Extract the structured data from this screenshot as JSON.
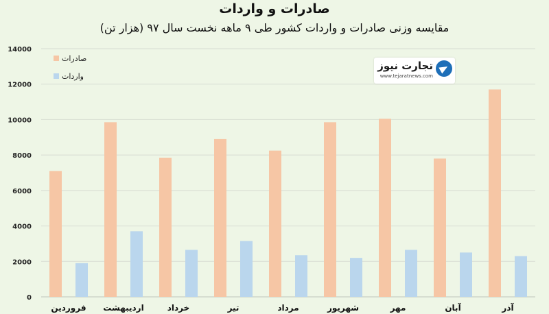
{
  "title": "صادرات و واردات",
  "subtitle": "مقایسه وزنی صادرات و واردات کشور طی ۹ ماهه نخست سال ۹۷ (هزار تن)",
  "logo": {
    "name": "تجارت نیوز",
    "site": "www.tejaratnews.com"
  },
  "chart_data": {
    "type": "bar",
    "categories": [
      "فروردین",
      "اردیبهشت",
      "خرداد",
      "تیر",
      "مرداد",
      "شهریور",
      "مهر",
      "آبان",
      "آذر"
    ],
    "series": [
      {
        "name": "صادرات",
        "color": "#f6c6a5",
        "values": [
          7100,
          9850,
          7850,
          8900,
          8250,
          9850,
          10050,
          7800,
          11700
        ]
      },
      {
        "name": "واردات",
        "color": "#bad6ed",
        "values": [
          1900,
          3700,
          2650,
          3150,
          2350,
          2200,
          2650,
          2500,
          2300
        ]
      }
    ],
    "ylim": [
      0,
      14000
    ],
    "yticks": [
      0,
      2000,
      4000,
      6000,
      8000,
      10000,
      12000,
      14000
    ],
    "ytick_labels": [
      "0",
      "2000",
      "4000",
      "6000",
      "8000",
      "10000",
      "12000",
      "14000"
    ],
    "grid": true,
    "legend_position": "top-left"
  }
}
